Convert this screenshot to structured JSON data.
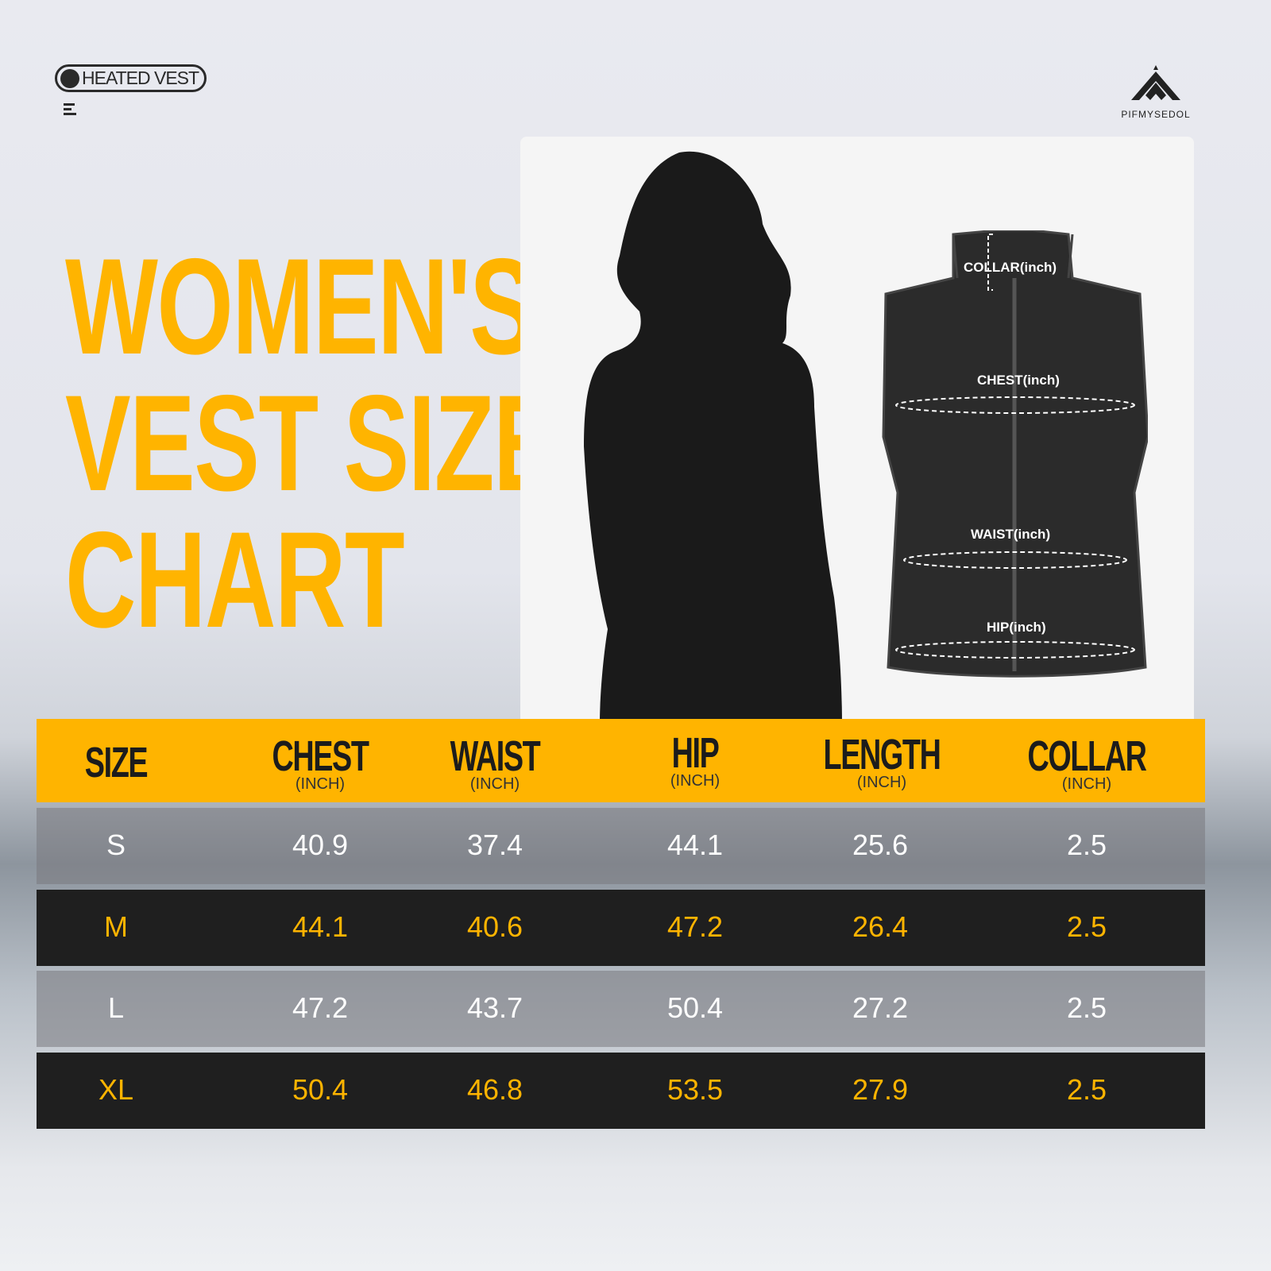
{
  "brand": {
    "badge": "HEATED VEST",
    "logo_text": "PIFMYSEDOL"
  },
  "title": {
    "line1": "WOMEN'S",
    "line2": "VEST SIZE",
    "line3": "CHART"
  },
  "diagram": {
    "collar": "COLLAR(inch)",
    "chest": "CHEST(inch)",
    "waist": "WAIST(inch)",
    "hip": "HIP(inch)"
  },
  "table": {
    "headers": [
      {
        "label": "SIZE",
        "unit": ""
      },
      {
        "label": "CHEST",
        "unit": "(INCH)"
      },
      {
        "label": "WAIST",
        "unit": "(INCH)"
      },
      {
        "label": "HIP",
        "unit": "(INCH)"
      },
      {
        "label": "LENGTH",
        "unit": "(INCH)"
      },
      {
        "label": "COLLAR",
        "unit": "(INCH)"
      }
    ],
    "rows": [
      [
        "S",
        "40.9",
        "37.4",
        "44.1",
        "25.6",
        "2.5"
      ],
      [
        "M",
        "44.1",
        "40.6",
        "47.2",
        "26.4",
        "2.5"
      ],
      [
        "L",
        "47.2",
        "43.7",
        "50.4",
        "27.2",
        "2.5"
      ],
      [
        "XL",
        "50.4",
        "46.8",
        "53.5",
        "27.9",
        "2.5"
      ]
    ]
  },
  "colors": {
    "accent": "#ffb400",
    "dark_row": "#1f1f1f"
  }
}
